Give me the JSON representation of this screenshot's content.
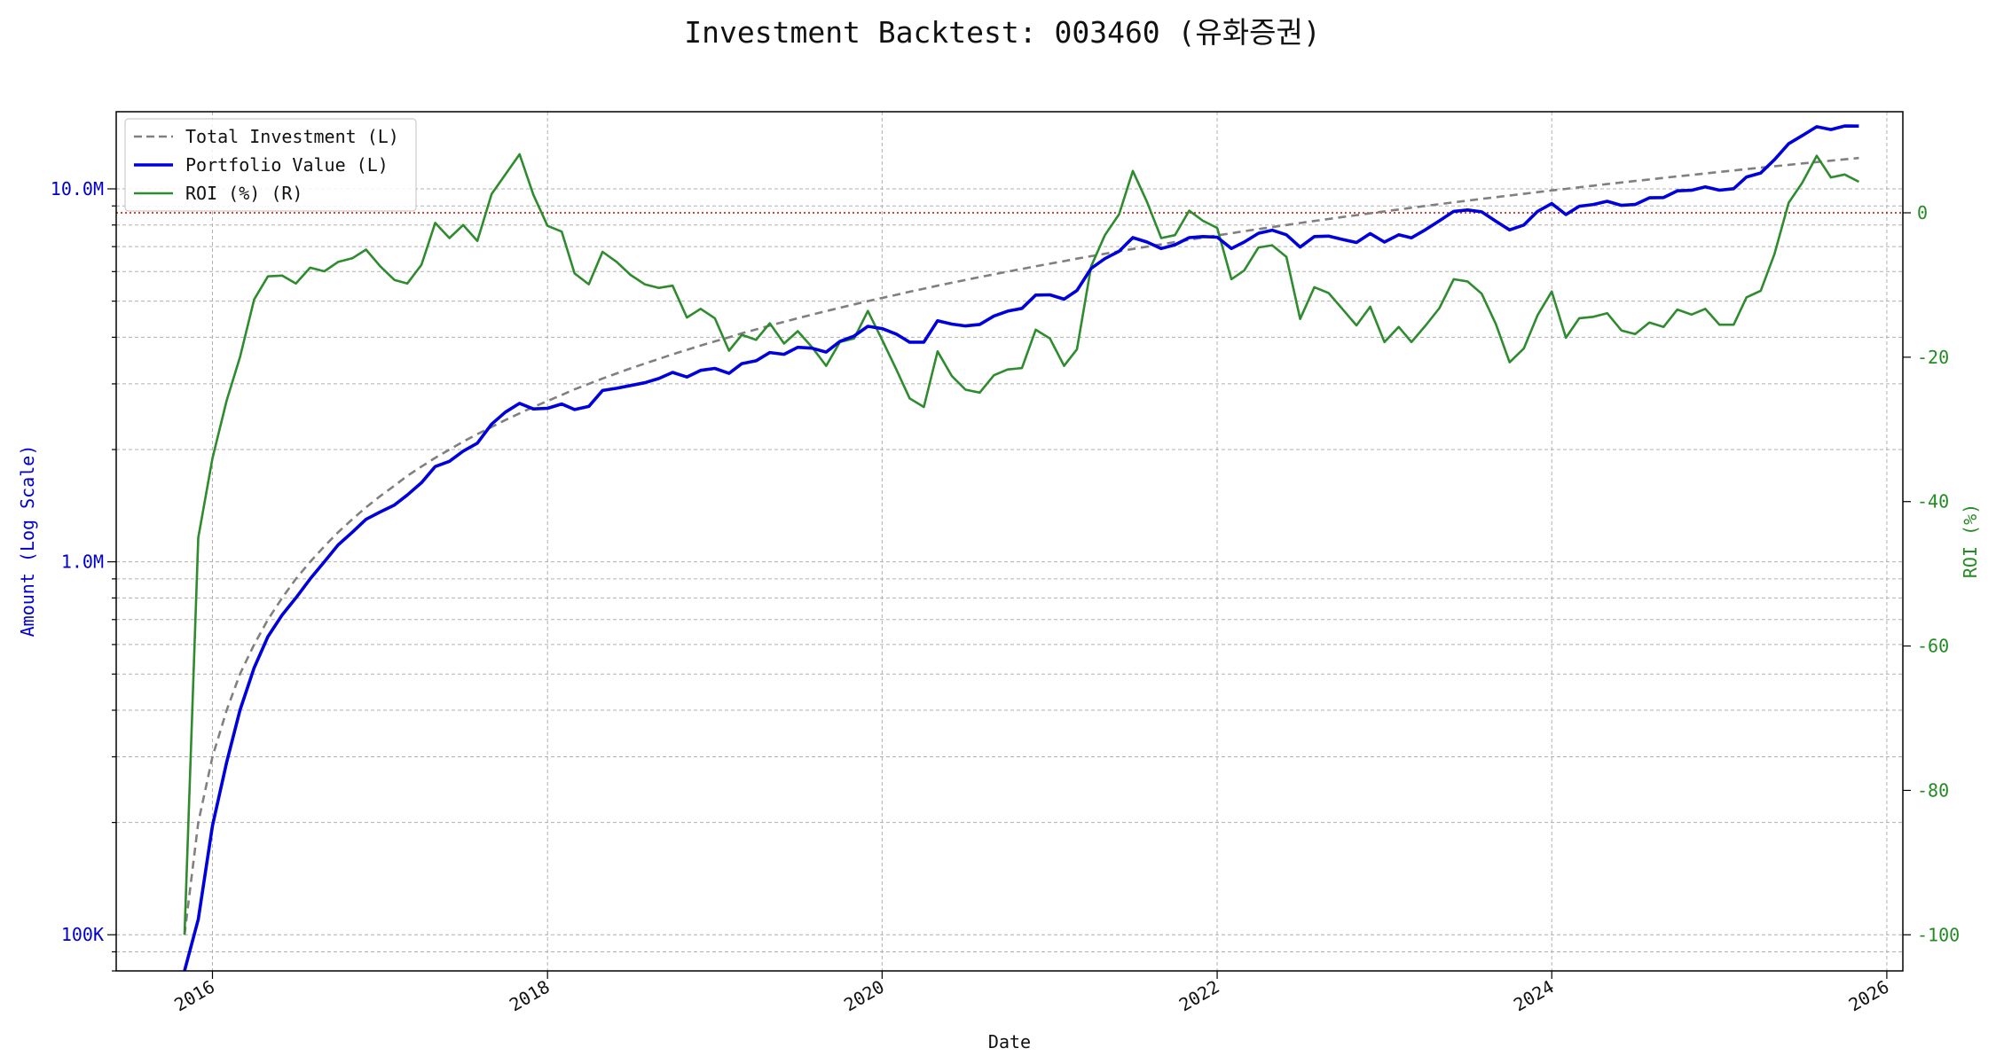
{
  "chart_data": {
    "type": "line",
    "title": "Investment Backtest: 003460 (유화증권)",
    "xlabel": "Date",
    "ylabel_left": "Amount (Log Scale)",
    "ylabel_right": "ROI (%)",
    "x_range": [
      "2015-06-05",
      "2026-02-05"
    ],
    "x_ticks": [
      "2016",
      "2018",
      "2020",
      "2022",
      "2024",
      "2026"
    ],
    "ylim_left": [
      80000,
      16100000
    ],
    "yscale_left": "log",
    "y_ticks_left": [
      {
        "value": 100000,
        "label": "100K"
      },
      {
        "value": 1000000,
        "label": "1.0M"
      },
      {
        "value": 10000000,
        "label": "10.0M"
      }
    ],
    "ylim_right": [
      -105,
      14
    ],
    "y_ticks_right": [
      0,
      -20,
      -40,
      -60,
      -80,
      -100
    ],
    "zero_roi_reference": 0,
    "grid": true,
    "legend_position": "top-left",
    "colors": {
      "total_investment": "#808080",
      "portfolio_value": "#0000dd",
      "roi": "#2e8b2e",
      "left_axis": "#0000cc",
      "right_axis": "#228b22",
      "zero_line": "#cc0000"
    },
    "dates": [
      "2015-11",
      "2015-12",
      "2016-01",
      "2016-02",
      "2016-03",
      "2016-04",
      "2016-05",
      "2016-06",
      "2016-07",
      "2016-08",
      "2016-09",
      "2016-10",
      "2016-11",
      "2016-12",
      "2017-01",
      "2017-02",
      "2017-03",
      "2017-04",
      "2017-05",
      "2017-06",
      "2017-07",
      "2017-08",
      "2017-09",
      "2017-10",
      "2017-11",
      "2017-12",
      "2018-01",
      "2018-02",
      "2018-03",
      "2018-04",
      "2018-05",
      "2018-06",
      "2018-07",
      "2018-08",
      "2018-09",
      "2018-10",
      "2018-11",
      "2018-12",
      "2019-01",
      "2019-02",
      "2019-03",
      "2019-04",
      "2019-05",
      "2019-06",
      "2019-07",
      "2019-08",
      "2019-09",
      "2019-10",
      "2019-11",
      "2019-12",
      "2020-01",
      "2020-02",
      "2020-03",
      "2020-04",
      "2020-05",
      "2020-06",
      "2020-07",
      "2020-08",
      "2020-09",
      "2020-10",
      "2020-11",
      "2020-12",
      "2021-01",
      "2021-02",
      "2021-03",
      "2021-04",
      "2021-05",
      "2021-06",
      "2021-07",
      "2021-08",
      "2021-09",
      "2021-10",
      "2021-11",
      "2021-12",
      "2022-01",
      "2022-02",
      "2022-03",
      "2022-04",
      "2022-05",
      "2022-06",
      "2022-07",
      "2022-08",
      "2022-09",
      "2022-10",
      "2022-11",
      "2022-12",
      "2023-01",
      "2023-02",
      "2023-03",
      "2023-04",
      "2023-05",
      "2023-06",
      "2023-07",
      "2023-08",
      "2023-09",
      "2023-10",
      "2023-11",
      "2023-12",
      "2024-01",
      "2024-02",
      "2024-03",
      "2024-04",
      "2024-05",
      "2024-06",
      "2024-07",
      "2024-08",
      "2024-09",
      "2024-10",
      "2024-11",
      "2024-12",
      "2025-01",
      "2025-02",
      "2025-03",
      "2025-04",
      "2025-05",
      "2025-06",
      "2025-07",
      "2025-08",
      "2025-09",
      "2025-10",
      "2025-11"
    ],
    "series": [
      {
        "name": "Total Investment (L)",
        "style": "dashed",
        "axis": "left",
        "values": [
          100000,
          200000,
          300000,
          400000,
          500000,
          600000,
          700000,
          800000,
          900000,
          1000000,
          1100000,
          1200000,
          1300000,
          1400000,
          1500000,
          1600000,
          1700000,
          1800000,
          1900000,
          2000000,
          2100000,
          2200000,
          2300000,
          2400000,
          2500000,
          2600000,
          2700000,
          2800000,
          2900000,
          3000000,
          3100000,
          3200000,
          3300000,
          3400000,
          3500000,
          3600000,
          3700000,
          3800000,
          3900000,
          4000000,
          4100000,
          4200000,
          4300000,
          4400000,
          4500000,
          4600000,
          4700000,
          4800000,
          4900000,
          5000000,
          5100000,
          5200000,
          5300000,
          5400000,
          5500000,
          5600000,
          5700000,
          5800000,
          5900000,
          6000000,
          6100000,
          6200000,
          6300000,
          6400000,
          6500000,
          6600000,
          6700000,
          6800000,
          6900000,
          7000000,
          7100000,
          7200000,
          7300000,
          7400000,
          7500000,
          7600000,
          7700000,
          7800000,
          7900000,
          8000000,
          8100000,
          8200000,
          8300000,
          8400000,
          8500000,
          8600000,
          8700000,
          8800000,
          8900000,
          9000000,
          9100000,
          9200000,
          9300000,
          9400000,
          9500000,
          9600000,
          9700000,
          9800000,
          9900000,
          10000000,
          10100000,
          10200000,
          10300000,
          10400000,
          10500000,
          10600000,
          10700000,
          10800000,
          10900000,
          11000000,
          11100000,
          11200000,
          11300000,
          11400000,
          11500000,
          11600000,
          11700000,
          11800000,
          11900000,
          12000000,
          12100000
        ]
      },
      {
        "name": "Portfolio Value (L)",
        "style": "solid",
        "axis": "left",
        "values": [
          80000,
          110000,
          196000,
          290000,
          400000,
          520000,
          630000,
          720000,
          800000,
          900000,
          1000000,
          1110000,
          1200000,
          1300000,
          1360000,
          1420000,
          1510000,
          1630000,
          1800000,
          1860000,
          1980000,
          2080000,
          2340000,
          2520000,
          2660000,
          2570000,
          2580000,
          2650000,
          2560000,
          2610000,
          2880000,
          2920000,
          2970000,
          3020000,
          3100000,
          3220000,
          3130000,
          3260000,
          3300000,
          3200000,
          3400000,
          3460000,
          3640000,
          3600000,
          3760000,
          3740000,
          3650000,
          3900000,
          4030000,
          4280000,
          4220000,
          4080000,
          3880000,
          3880000,
          4430000,
          4340000,
          4290000,
          4330000,
          4560000,
          4700000,
          4780000,
          5190000,
          5200000,
          5060000,
          5340000,
          6120000,
          6500000,
          6800000,
          7400000,
          7200000,
          6920000,
          7080000,
          7400000,
          7450000,
          7420000,
          6920000,
          7200000,
          7600000,
          7750000,
          7530000,
          6980000,
          7450000,
          7470000,
          7320000,
          7180000,
          7590000,
          7200000,
          7530000,
          7390000,
          7780000,
          8210000,
          8700000,
          8780000,
          8680000,
          8190000,
          7760000,
          8000000,
          8700000,
          9130000,
          8530000,
          8980000,
          9080000,
          9260000,
          9030000,
          9080000,
          9460000,
          9480000,
          9880000,
          9910000,
          10120000,
          9920000,
          10010000,
          10760000,
          11030000,
          11970000,
          13210000,
          13900000,
          14680000,
          14420000,
          14740000,
          14730000
        ]
      },
      {
        "name": "ROI (%) (R)",
        "style": "solid",
        "axis": "right",
        "values": [
          -100,
          -45,
          -34,
          -26,
          -20,
          -12,
          -8.8,
          -8.7,
          -9.8,
          -7.6,
          -8.1,
          -6.8,
          -6.3,
          -5.1,
          -7.4,
          -9.3,
          -9.8,
          -7.2,
          -1.4,
          -3.5,
          -1.7,
          -3.9,
          2.6,
          5.3,
          8.1,
          2.5,
          -1.8,
          -2.6,
          -8.4,
          -9.9,
          -5.4,
          -6.8,
          -8.6,
          -9.9,
          -10.4,
          -10.1,
          -14.5,
          -13.3,
          -14.6,
          -19.1,
          -16.9,
          -17.6,
          -15.3,
          -18.1,
          -16.4,
          -18.6,
          -21.2,
          -17.9,
          -17.4,
          -13.6,
          -17.6,
          -21.7,
          -25.7,
          -26.9,
          -19.2,
          -22.6,
          -24.5,
          -24.9,
          -22.5,
          -21.7,
          -21.5,
          -16.2,
          -17.4,
          -21.2,
          -18.9,
          -7.4,
          -3.1,
          -0.2,
          5.8,
          1.5,
          -3.5,
          -3.1,
          0.3,
          -1.1,
          -2.1,
          -9.2,
          -8,
          -4.8,
          -4.5,
          -6.1,
          -14.7,
          -10.3,
          -11.1,
          -13.3,
          -15.6,
          -13,
          -17.9,
          -15.8,
          -17.9,
          -15.6,
          -13.2,
          -9.2,
          -9.5,
          -11.2,
          -15.4,
          -20.7,
          -18.8,
          -14.2,
          -10.9,
          -17.3,
          -14.6,
          -14.4,
          -13.9,
          -16.3,
          -16.8,
          -15.2,
          -15.8,
          -13.4,
          -14.1,
          -13.3,
          -15.5,
          -15.5,
          -11.7,
          -10.8,
          -5.7,
          1.4,
          4.2,
          7.9,
          4.9,
          5.3,
          4.3
        ]
      }
    ]
  }
}
